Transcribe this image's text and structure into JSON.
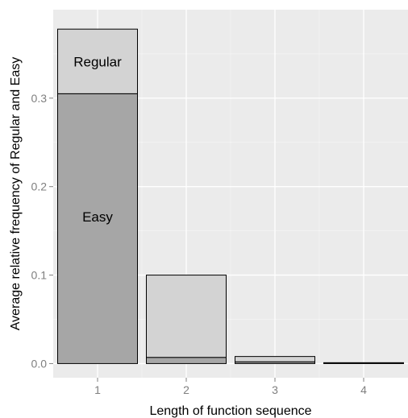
{
  "chart_data": {
    "type": "bar",
    "stacked": true,
    "categories": [
      "1",
      "2",
      "3",
      "4"
    ],
    "series": [
      {
        "values": [
          0.305,
          0.007,
          0.002,
          0.0005
        ],
        "color": "#a6a6a6"
      },
      {
        "values": [
          0.073,
          0.093,
          0.006,
          0.0005
        ],
        "color": "#d3d3d3"
      }
    ],
    "segment_labels": [
      "Easy",
      "Regular"
    ],
    "xlabel": "Length of function sequence",
    "ylabel": "Average relative frequency of Regular and Easy",
    "ylim": [
      -0.016,
      0.4
    ],
    "yticks": [
      "0.0",
      "0.1",
      "0.2",
      "0.3"
    ],
    "yticks_values": [
      0.0,
      0.1,
      0.2,
      0.3
    ],
    "grid": true,
    "panel_background": "#ebebeb",
    "grid_color": "#ffffff",
    "bar_outline": "#000000"
  }
}
